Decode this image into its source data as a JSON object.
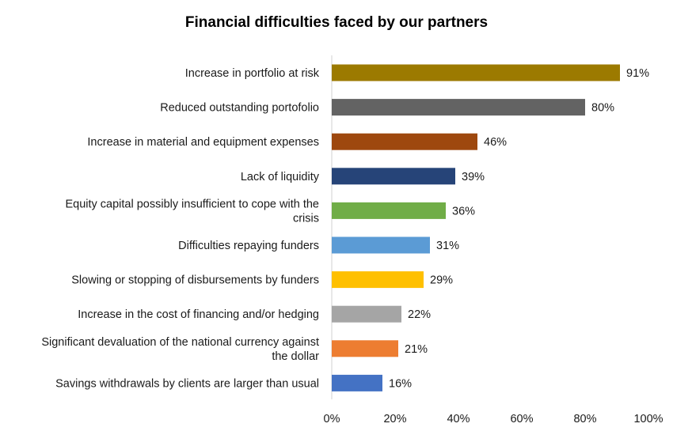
{
  "chart_data": {
    "type": "bar",
    "orientation": "horizontal",
    "title": "Financial difficulties faced by our partners",
    "xlabel": "",
    "ylabel": "",
    "xlim": [
      0,
      100
    ],
    "x_ticks": [
      "0%",
      "20%",
      "40%",
      "60%",
      "80%",
      "100%"
    ],
    "grid": false,
    "legend": false,
    "categories": [
      "Increase in portfolio at risk",
      "Reduced outstanding portofolio",
      "Increase in material and equipment expenses",
      "Lack of liquidity",
      "Equity capital possibly insufficient to cope with the crisis",
      "Difficulties repaying funders",
      "Slowing or stopping of disbursements by funders",
      "Increase in the cost of financing and/or hedging",
      "Significant devaluation of the national currency against the dollar",
      "Savings withdrawals by clients are larger than usual"
    ],
    "category_lines": [
      [
        "Increase in portfolio at risk"
      ],
      [
        "Reduced outstanding portofolio"
      ],
      [
        "Increase in material and equipment expenses"
      ],
      [
        "Lack of liquidity"
      ],
      [
        "Equity capital possibly insufficient to cope with the",
        "crisis"
      ],
      [
        "Difficulties repaying funders"
      ],
      [
        "Slowing or stopping of disbursements by funders"
      ],
      [
        "Increase in the cost of financing and/or hedging"
      ],
      [
        "Significant devaluation of the national currency against",
        "the dollar"
      ],
      [
        "Savings withdrawals by clients are larger than usual"
      ]
    ],
    "values": [
      91,
      80,
      46,
      39,
      36,
      31,
      29,
      22,
      21,
      16
    ],
    "value_labels": [
      "91%",
      "80%",
      "46%",
      "39%",
      "36%",
      "31%",
      "29%",
      "22%",
      "21%",
      "16%"
    ],
    "colors": [
      "#9C7A00",
      "#636363",
      "#9E480E",
      "#264478",
      "#70AD47",
      "#5B9BD5",
      "#FFC000",
      "#A5A5A5",
      "#ED7D31",
      "#4472C4"
    ]
  }
}
